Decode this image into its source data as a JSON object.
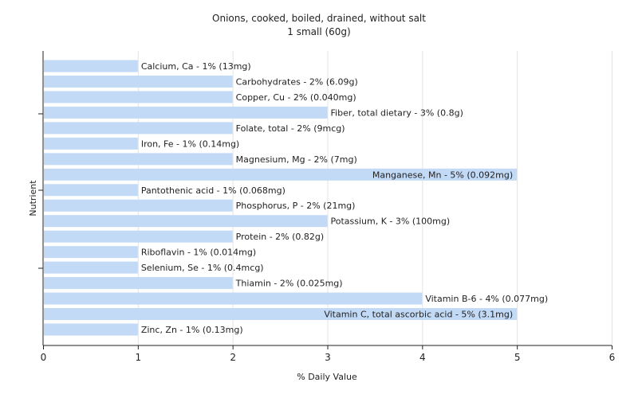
{
  "chart_data": {
    "type": "bar",
    "orientation": "horizontal",
    "title": "Onions, cooked, boiled, drained, without salt",
    "subtitle": "1 small (60g)",
    "xlabel": "% Daily Value",
    "ylabel": "Nutrient",
    "xlim": [
      0,
      6
    ],
    "xticks": [
      0,
      1,
      2,
      3,
      4,
      5,
      6
    ],
    "grid": true,
    "bar_color": "#c3daf7",
    "categories": [
      "Calcium, Ca",
      "Carbohydrates",
      "Copper, Cu",
      "Fiber, total dietary",
      "Folate, total",
      "Iron, Fe",
      "Magnesium, Mg",
      "Manganese, Mn",
      "Pantothenic acid",
      "Phosphorus, P",
      "Potassium, K",
      "Protein",
      "Riboflavin",
      "Selenium, Se",
      "Thiamin",
      "Vitamin B-6",
      "Vitamin C, total ascorbic acid",
      "Zinc, Zn"
    ],
    "values": [
      1,
      2,
      2,
      3,
      2,
      1,
      2,
      5,
      1,
      2,
      3,
      2,
      1,
      1,
      2,
      4,
      5,
      1
    ],
    "labels": [
      "Calcium, Ca - 1% (13mg)",
      "Carbohydrates - 2% (6.09g)",
      "Copper, Cu - 2% (0.040mg)",
      "Fiber, total dietary - 3% (0.8g)",
      "Folate, total - 2% (9mcg)",
      "Iron, Fe - 1% (0.14mg)",
      "Magnesium, Mg - 2% (7mg)",
      "Manganese, Mn - 5% (0.092mg)",
      "Pantothenic acid - 1% (0.068mg)",
      "Phosphorus, P - 2% (21mg)",
      "Potassium, K - 3% (100mg)",
      "Protein - 2% (0.82g)",
      "Riboflavin - 1% (0.014mg)",
      "Selenium, Se - 1% (0.4mcg)",
      "Thiamin - 2% (0.025mg)",
      "Vitamin B-6 - 4% (0.077mg)",
      "Vitamin C, total ascorbic acid - 5% (3.1mg)",
      "Zinc, Zn - 1% (0.13mg)"
    ]
  }
}
